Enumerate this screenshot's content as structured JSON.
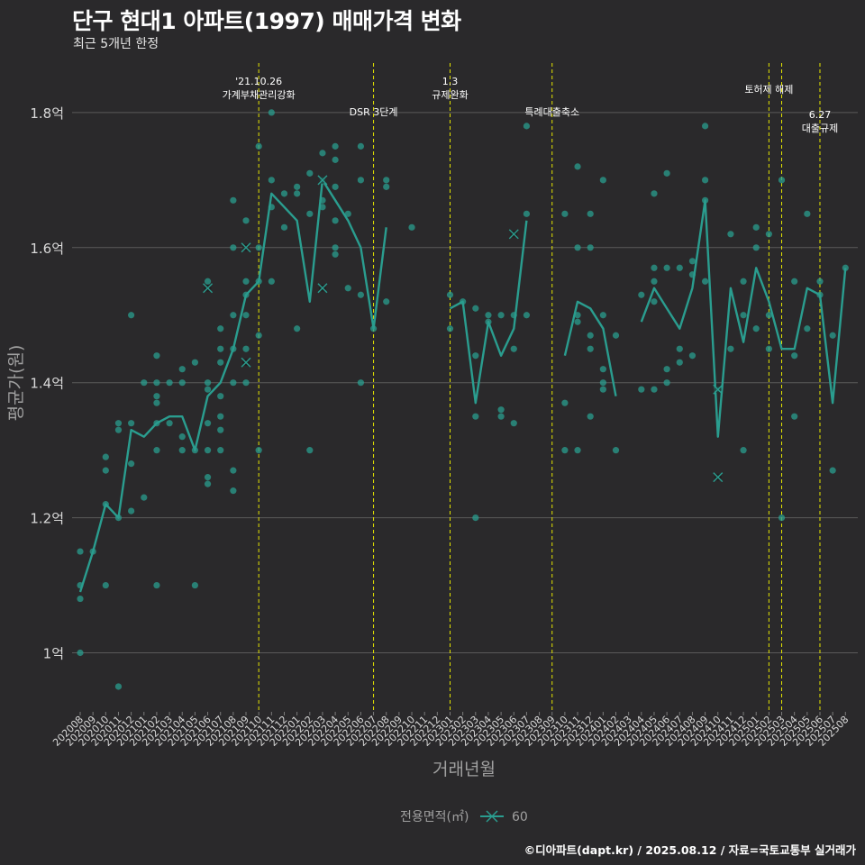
{
  "title": "단구 현대1 아파트(1997) 매매가격 변화",
  "subtitle": "최근 5개년 한정",
  "caption": "©디아파트(dapt.kr) / 2025.08.12 / 자료=국토교통부 실거래가",
  "colors": {
    "background": "#2a292b",
    "grid": "#5a5a5a",
    "series": "#2a9d8f",
    "event_line": "#e5e500",
    "axis_text": "#a0a0a0"
  },
  "chart_data": {
    "type": "line",
    "xlabel": "거래년월",
    "ylabel": "평균가(원)",
    "ylim": [
      0.9,
      1.88
    ],
    "y_ticks": [
      {
        "value": 1.0,
        "label": "1억"
      },
      {
        "value": 1.2,
        "label": "1.2억"
      },
      {
        "value": 1.4,
        "label": "1.4억"
      },
      {
        "value": 1.6,
        "label": "1.6억"
      },
      {
        "value": 1.8,
        "label": "1.8억"
      }
    ],
    "categories": [
      "202008",
      "202009",
      "202010",
      "202011",
      "202012",
      "202101",
      "202102",
      "202103",
      "202104",
      "202105",
      "202106",
      "202107",
      "202108",
      "202109",
      "202110",
      "202111",
      "202112",
      "202201",
      "202202",
      "202203",
      "202204",
      "202205",
      "202206",
      "202207",
      "202208",
      "202209",
      "202210",
      "202211",
      "202212",
      "202301",
      "202302",
      "202303",
      "202304",
      "202305",
      "202306",
      "202307",
      "202308",
      "202309",
      "202310",
      "202311",
      "202312",
      "202401",
      "202402",
      "202403",
      "202404",
      "202405",
      "202406",
      "202407",
      "202408",
      "202409",
      "202410",
      "202411",
      "202412",
      "202501",
      "202502",
      "202503",
      "202504",
      "202505",
      "202506",
      "202507",
      "202508"
    ],
    "legend": {
      "title": "전용면적(㎡)",
      "items": [
        "60"
      ]
    },
    "series": [
      {
        "name": "60",
        "line_segments": [
          [
            [
              "202008",
              1.09
            ],
            [
              "202009",
              1.15
            ],
            [
              "202010",
              1.22
            ],
            [
              "202011",
              1.2
            ],
            [
              "202012",
              1.33
            ],
            [
              "202101",
              1.32
            ],
            [
              "202102",
              1.34
            ],
            [
              "202103",
              1.35
            ],
            [
              "202104",
              1.35
            ],
            [
              "202105",
              1.3
            ],
            [
              "202106",
              1.38
            ],
            [
              "202107",
              1.4
            ],
            [
              "202108",
              1.45
            ],
            [
              "202109",
              1.53
            ],
            [
              "202110",
              1.55
            ],
            [
              "202111",
              1.68
            ],
            [
              "202112",
              1.66
            ],
            [
              "202201",
              1.64
            ],
            [
              "202202",
              1.52
            ],
            [
              "202203",
              1.7
            ],
            [
              "202204",
              1.67
            ],
            [
              "202205",
              1.64
            ],
            [
              "202206",
              1.6
            ],
            [
              "202207",
              1.48
            ],
            [
              "202208",
              1.63
            ]
          ],
          [
            [
              "202301",
              1.51
            ],
            [
              "202302",
              1.52
            ],
            [
              "202303",
              1.37
            ],
            [
              "202304",
              1.49
            ],
            [
              "202305",
              1.44
            ],
            [
              "202306",
              1.48
            ],
            [
              "202307",
              1.64
            ]
          ],
          [
            [
              "202310",
              1.44
            ],
            [
              "202311",
              1.52
            ],
            [
              "202312",
              1.51
            ],
            [
              "202401",
              1.48
            ],
            [
              "202402",
              1.38
            ]
          ],
          [
            [
              "202404",
              1.49
            ],
            [
              "202405",
              1.54
            ],
            [
              "202406",
              1.51
            ],
            [
              "202407",
              1.48
            ],
            [
              "202408",
              1.54
            ],
            [
              "202409",
              1.67
            ],
            [
              "202410",
              1.32
            ],
            [
              "202411",
              1.54
            ],
            [
              "202412",
              1.46
            ],
            [
              "202501",
              1.57
            ],
            [
              "202502",
              1.52
            ],
            [
              "202503",
              1.45
            ],
            [
              "202504",
              1.45
            ],
            [
              "202505",
              1.54
            ],
            [
              "202506",
              1.53
            ],
            [
              "202507",
              1.37
            ],
            [
              "202508",
              1.57
            ]
          ]
        ],
        "transactions": [
          [
            "202008",
            1.15
          ],
          [
            "202008",
            1.1
          ],
          [
            "202008",
            1.08
          ],
          [
            "202008",
            1.0
          ],
          [
            "202009",
            1.15
          ],
          [
            "202010",
            1.29
          ],
          [
            "202010",
            1.27
          ],
          [
            "202010",
            1.22
          ],
          [
            "202010",
            1.1
          ],
          [
            "202011",
            1.34
          ],
          [
            "202011",
            1.33
          ],
          [
            "202011",
            1.2
          ],
          [
            "202011",
            0.95
          ],
          [
            "202012",
            1.5
          ],
          [
            "202012",
            1.34
          ],
          [
            "202012",
            1.28
          ],
          [
            "202012",
            1.21
          ],
          [
            "202101",
            1.4
          ],
          [
            "202101",
            1.23
          ],
          [
            "202102",
            1.44
          ],
          [
            "202102",
            1.4
          ],
          [
            "202102",
            1.38
          ],
          [
            "202102",
            1.37
          ],
          [
            "202102",
            1.34
          ],
          [
            "202102",
            1.3
          ],
          [
            "202102",
            1.1
          ],
          [
            "202103",
            1.4
          ],
          [
            "202103",
            1.34
          ],
          [
            "202104",
            1.42
          ],
          [
            "202104",
            1.4
          ],
          [
            "202104",
            1.32
          ],
          [
            "202104",
            1.3
          ],
          [
            "202105",
            1.43
          ],
          [
            "202105",
            1.3
          ],
          [
            "202105",
            1.1
          ],
          [
            "202106",
            1.55
          ],
          [
            "202106",
            1.4
          ],
          [
            "202106",
            1.39
          ],
          [
            "202106",
            1.34
          ],
          [
            "202106",
            1.3
          ],
          [
            "202106",
            1.26
          ],
          [
            "202106",
            1.25
          ],
          [
            "202107",
            1.48
          ],
          [
            "202107",
            1.45
          ],
          [
            "202107",
            1.43
          ],
          [
            "202107",
            1.38
          ],
          [
            "202107",
            1.35
          ],
          [
            "202107",
            1.33
          ],
          [
            "202107",
            1.3
          ],
          [
            "202108",
            1.67
          ],
          [
            "202108",
            1.6
          ],
          [
            "202108",
            1.5
          ],
          [
            "202108",
            1.45
          ],
          [
            "202108",
            1.4
          ],
          [
            "202108",
            1.27
          ],
          [
            "202108",
            1.24
          ],
          [
            "202109",
            1.64
          ],
          [
            "202109",
            1.55
          ],
          [
            "202109",
            1.53
          ],
          [
            "202109",
            1.5
          ],
          [
            "202109",
            1.45
          ],
          [
            "202109",
            1.4
          ],
          [
            "202110",
            1.75
          ],
          [
            "202110",
            1.6
          ],
          [
            "202110",
            1.55
          ],
          [
            "202110",
            1.47
          ],
          [
            "202110",
            1.3
          ],
          [
            "202111",
            1.8
          ],
          [
            "202111",
            1.7
          ],
          [
            "202111",
            1.66
          ],
          [
            "202111",
            1.55
          ],
          [
            "202112",
            1.68
          ],
          [
            "202112",
            1.63
          ],
          [
            "202201",
            1.69
          ],
          [
            "202201",
            1.68
          ],
          [
            "202201",
            1.48
          ],
          [
            "202202",
            1.71
          ],
          [
            "202202",
            1.65
          ],
          [
            "202202",
            1.3
          ],
          [
            "202203",
            1.74
          ],
          [
            "202203",
            1.7
          ],
          [
            "202203",
            1.67
          ],
          [
            "202203",
            1.66
          ],
          [
            "202204",
            1.75
          ],
          [
            "202204",
            1.73
          ],
          [
            "202204",
            1.69
          ],
          [
            "202204",
            1.64
          ],
          [
            "202204",
            1.6
          ],
          [
            "202204",
            1.59
          ],
          [
            "202205",
            1.65
          ],
          [
            "202205",
            1.54
          ],
          [
            "202206",
            1.75
          ],
          [
            "202206",
            1.7
          ],
          [
            "202206",
            1.53
          ],
          [
            "202206",
            1.4
          ],
          [
            "202207",
            1.48
          ],
          [
            "202208",
            1.7
          ],
          [
            "202208",
            1.69
          ],
          [
            "202208",
            1.52
          ],
          [
            "202210",
            1.63
          ],
          [
            "202301",
            1.53
          ],
          [
            "202301",
            1.48
          ],
          [
            "202302",
            1.52
          ],
          [
            "202303",
            1.51
          ],
          [
            "202303",
            1.44
          ],
          [
            "202303",
            1.35
          ],
          [
            "202303",
            1.2
          ],
          [
            "202304",
            1.5
          ],
          [
            "202304",
            1.49
          ],
          [
            "202305",
            1.5
          ],
          [
            "202305",
            1.36
          ],
          [
            "202305",
            1.35
          ],
          [
            "202306",
            1.5
          ],
          [
            "202306",
            1.45
          ],
          [
            "202306",
            1.34
          ],
          [
            "202307",
            1.78
          ],
          [
            "202307",
            1.65
          ],
          [
            "202307",
            1.5
          ],
          [
            "202310",
            1.65
          ],
          [
            "202310",
            1.37
          ],
          [
            "202310",
            1.3
          ],
          [
            "202311",
            1.72
          ],
          [
            "202311",
            1.6
          ],
          [
            "202311",
            1.5
          ],
          [
            "202311",
            1.49
          ],
          [
            "202311",
            1.3
          ],
          [
            "202312",
            1.65
          ],
          [
            "202312",
            1.6
          ],
          [
            "202312",
            1.47
          ],
          [
            "202312",
            1.45
          ],
          [
            "202312",
            1.35
          ],
          [
            "202401",
            1.7
          ],
          [
            "202401",
            1.5
          ],
          [
            "202401",
            1.42
          ],
          [
            "202401",
            1.4
          ],
          [
            "202401",
            1.39
          ],
          [
            "202402",
            1.47
          ],
          [
            "202402",
            1.3
          ],
          [
            "202404",
            1.53
          ],
          [
            "202404",
            1.39
          ],
          [
            "202405",
            1.68
          ],
          [
            "202405",
            1.57
          ],
          [
            "202405",
            1.55
          ],
          [
            "202405",
            1.52
          ],
          [
            "202405",
            1.39
          ],
          [
            "202406",
            1.71
          ],
          [
            "202406",
            1.57
          ],
          [
            "202406",
            1.42
          ],
          [
            "202406",
            1.4
          ],
          [
            "202407",
            1.57
          ],
          [
            "202407",
            1.45
          ],
          [
            "202407",
            1.43
          ],
          [
            "202408",
            1.58
          ],
          [
            "202408",
            1.56
          ],
          [
            "202408",
            1.44
          ],
          [
            "202409",
            1.78
          ],
          [
            "202409",
            1.7
          ],
          [
            "202409",
            1.67
          ],
          [
            "202409",
            1.55
          ],
          [
            "202410",
            1.39
          ],
          [
            "202411",
            1.62
          ],
          [
            "202411",
            1.45
          ],
          [
            "202412",
            1.55
          ],
          [
            "202412",
            1.5
          ],
          [
            "202412",
            1.3
          ],
          [
            "202501",
            1.63
          ],
          [
            "202501",
            1.6
          ],
          [
            "202501",
            1.48
          ],
          [
            "202502",
            1.62
          ],
          [
            "202502",
            1.5
          ],
          [
            "202502",
            1.45
          ],
          [
            "202503",
            1.7
          ],
          [
            "202503",
            1.2
          ],
          [
            "202504",
            1.55
          ],
          [
            "202504",
            1.44
          ],
          [
            "202504",
            1.35
          ],
          [
            "202505",
            1.65
          ],
          [
            "202505",
            1.48
          ],
          [
            "202506",
            1.55
          ],
          [
            "202506",
            1.53
          ],
          [
            "202507",
            1.47
          ],
          [
            "202507",
            1.27
          ],
          [
            "202508",
            1.57
          ]
        ],
        "special_deals": [
          [
            "202106",
            1.54
          ],
          [
            "202109",
            1.6
          ],
          [
            "202109",
            1.43
          ],
          [
            "202203",
            1.7
          ],
          [
            "202203",
            1.54
          ],
          [
            "202306",
            1.62
          ],
          [
            "202410",
            1.39
          ],
          [
            "202410",
            1.26
          ]
        ]
      }
    ],
    "events": [
      {
        "x": "202110",
        "lines": [
          "'21.10.26",
          "가계부채관리강화"
        ],
        "row": "high"
      },
      {
        "x": "202207",
        "lines": [
          "DSR 3단계"
        ],
        "row": "low"
      },
      {
        "x": "202301",
        "lines": [
          "1.3",
          "규제완화"
        ],
        "row": "high"
      },
      {
        "x": "202309",
        "lines": [
          "특례대출축소"
        ],
        "row": "low"
      },
      {
        "x": "202502",
        "lines": [
          "토허제 해제"
        ],
        "row": "mid"
      },
      {
        "x": "202503",
        "lines": [],
        "row": "mid"
      },
      {
        "x": "202506",
        "lines": [
          "6.27",
          "대출규제"
        ],
        "row": "low"
      }
    ]
  }
}
